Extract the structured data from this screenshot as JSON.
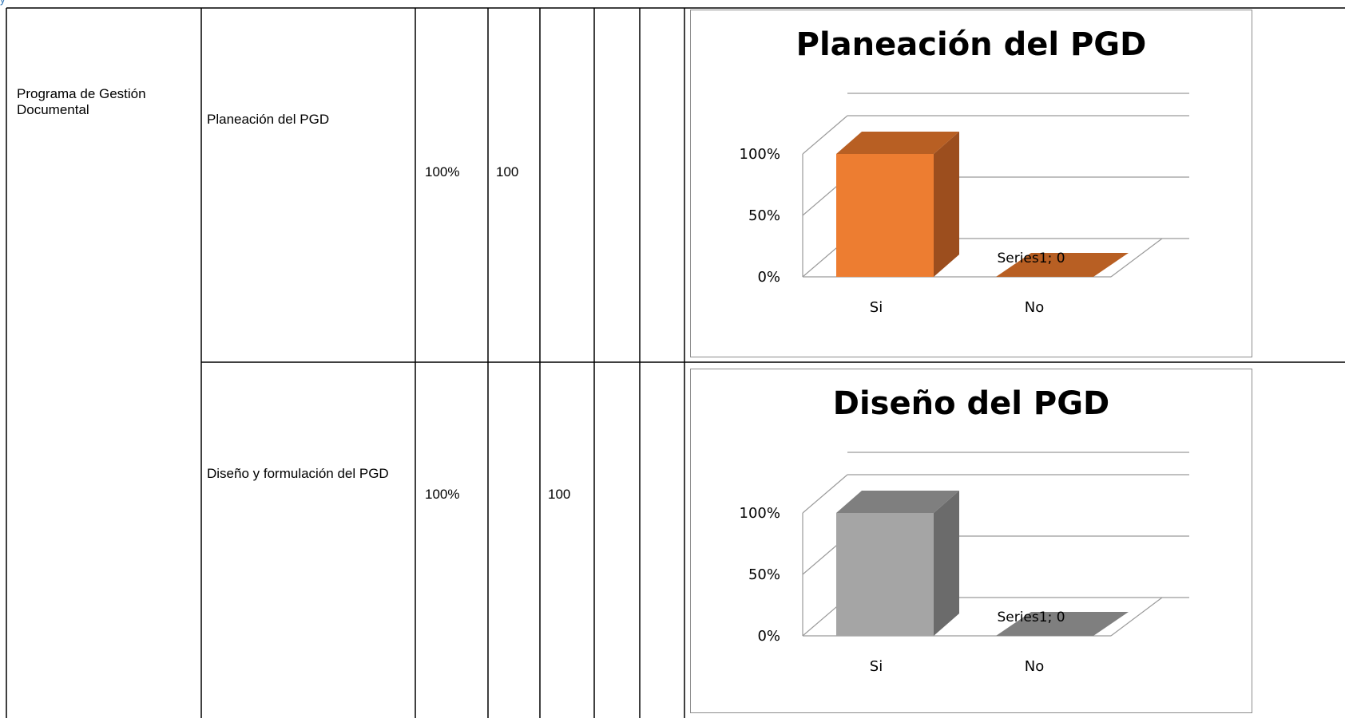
{
  "table": {
    "rows": [
      {
        "program": "Programa de Gestión Documental",
        "activity": "Planeación del PGD",
        "percent": "100%",
        "col_a": "100",
        "col_b": ""
      },
      {
        "program": "",
        "activity": "Diseño y formulación del PGD",
        "percent": "100%",
        "col_a": "",
        "col_b": "100"
      }
    ]
  },
  "chart_data": [
    {
      "type": "bar",
      "title": "Planeación del PGD",
      "categories": [
        "Si",
        "No"
      ],
      "series": [
        {
          "name": "Series1",
          "values": [
            1.0,
            0
          ]
        }
      ],
      "yticks": [
        "0%",
        "50%",
        "100%"
      ],
      "ylim": [
        0,
        1.0
      ],
      "data_label": "Series1; 0",
      "colors": {
        "front": "#ed7d31",
        "side": "#9c4e1e",
        "top": "#b85f23"
      },
      "grid": true,
      "style": "3d-column"
    },
    {
      "type": "bar",
      "title": "Diseño del PGD",
      "categories": [
        "Si",
        "No"
      ],
      "series": [
        {
          "name": "Series1",
          "values": [
            1.0,
            0
          ]
        }
      ],
      "yticks": [
        "0%",
        "50%",
        "100%"
      ],
      "ylim": [
        0,
        1.0
      ],
      "data_label": "Series1; 0",
      "colors": {
        "front": "#a5a5a5",
        "side": "#6b6b6b",
        "top": "#7f7f7f"
      },
      "grid": true,
      "style": "3d-column"
    }
  ]
}
